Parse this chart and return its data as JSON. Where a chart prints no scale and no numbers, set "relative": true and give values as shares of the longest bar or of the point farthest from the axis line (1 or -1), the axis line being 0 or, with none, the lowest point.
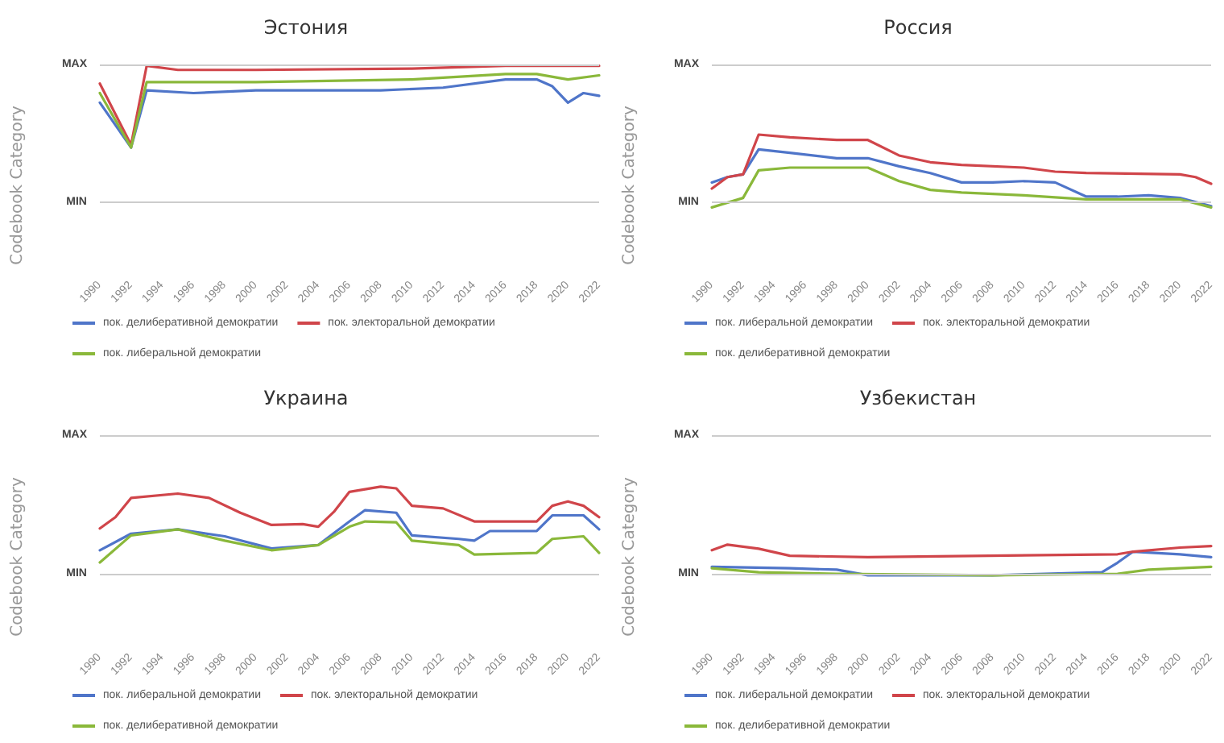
{
  "chart_data": [
    {
      "type": "line",
      "title": "Эстония",
      "ylabel": "Codebook Category",
      "relative": true,
      "xlim": [
        1990,
        2022
      ],
      "xticks": [
        1990,
        1992,
        1994,
        1996,
        1998,
        2000,
        2002,
        2004,
        2006,
        2008,
        2010,
        2012,
        2014,
        2016,
        2018,
        2020,
        2022
      ],
      "ref_lines": [
        {
          "axis": "y",
          "value": 1.01,
          "label": "MAX"
        },
        {
          "axis": "y",
          "value": 0,
          "label": "MIN"
        }
      ],
      "legend": "bottom",
      "marker": "none",
      "series": [
        {
          "name": "пок. делиберативной демократии",
          "color": "#4f75c9",
          "x": [
            1990,
            1992,
            1993,
            1996,
            2000,
            2008,
            2012,
            2016,
            2018,
            2019,
            2020,
            2021,
            2022
          ],
          "values": [
            0.73,
            0.4,
            0.82,
            0.8,
            0.82,
            0.82,
            0.84,
            0.9,
            0.9,
            0.85,
            0.73,
            0.8,
            0.78
          ]
        },
        {
          "name": "пок. электоральной демократии",
          "color": "#d0454a",
          "x": [
            1990,
            1992,
            1993,
            1995,
            2000,
            2010,
            2016,
            2022
          ],
          "values": [
            0.87,
            0.42,
            1,
            0.97,
            0.97,
            0.98,
            1,
            1
          ]
        },
        {
          "name": "пок. либеральной демократии",
          "color": "#8ab83a",
          "x": [
            1990,
            1992,
            1993,
            2000,
            2010,
            2016,
            2018,
            2020,
            2022
          ],
          "values": [
            0.8,
            0.4,
            0.88,
            0.88,
            0.9,
            0.94,
            0.94,
            0.9,
            0.93
          ]
        }
      ]
    },
    {
      "type": "line",
      "title": "Россия",
      "ylabel": "Codebook Category",
      "relative": true,
      "xlim": [
        1990,
        2022
      ],
      "xticks": [
        1990,
        1992,
        1994,
        1996,
        1998,
        2000,
        2002,
        2004,
        2006,
        2008,
        2010,
        2012,
        2014,
        2016,
        2018,
        2020,
        2022
      ],
      "ref_lines": [
        {
          "axis": "y",
          "value": 2.04,
          "label": "MAX"
        },
        {
          "axis": "y",
          "value": 0,
          "label": "MIN"
        }
      ],
      "legend": "bottom",
      "marker": "none",
      "series": [
        {
          "name": "пок. либеральной демократии",
          "color": "#4f75c9",
          "x": [
            1990,
            1991,
            1992,
            1993,
            1995,
            1998,
            2000,
            2002,
            2004,
            2006,
            2008,
            2010,
            2012,
            2014,
            2016,
            2018,
            2020,
            2022
          ],
          "values": [
            0.29,
            0.37,
            0.41,
            0.78,
            0.73,
            0.65,
            0.65,
            0.53,
            0.43,
            0.29,
            0.29,
            0.31,
            0.29,
            0.08,
            0.08,
            0.1,
            0.06,
            -0.06
          ]
        },
        {
          "name": "пок. электоральной демократии",
          "color": "#d0454a",
          "x": [
            1990,
            1991,
            1992,
            1993,
            1995,
            1998,
            2000,
            2002,
            2004,
            2006,
            2010,
            2012,
            2014,
            2020,
            2021,
            2022
          ],
          "values": [
            0.2,
            0.37,
            0.41,
            1,
            0.96,
            0.92,
            0.92,
            0.69,
            0.59,
            0.55,
            0.51,
            0.45,
            0.43,
            0.41,
            0.37,
            0.27
          ]
        },
        {
          "name": "пок. делиберативной демократии",
          "color": "#8ab83a",
          "x": [
            1990,
            1992,
            1993,
            1995,
            2000,
            2002,
            2004,
            2006,
            2010,
            2014,
            2020,
            2022
          ],
          "values": [
            -0.08,
            0.06,
            0.47,
            0.51,
            0.51,
            0.31,
            0.18,
            0.14,
            0.1,
            0.04,
            0.04,
            -0.08
          ]
        }
      ]
    },
    {
      "type": "line",
      "title": "Украина",
      "ylabel": "Codebook Category",
      "relative": true,
      "xlim": [
        1990,
        2022
      ],
      "xticks": [
        1990,
        1992,
        1994,
        1996,
        1998,
        2000,
        2002,
        2004,
        2006,
        2008,
        2010,
        2012,
        2014,
        2016,
        2018,
        2020,
        2022
      ],
      "ref_lines": [
        {
          "axis": "y",
          "value": 1.59,
          "label": "MAX"
        },
        {
          "axis": "y",
          "value": 0,
          "label": "MIN"
        }
      ],
      "legend": "bottom",
      "marker": "none",
      "series": [
        {
          "name": "пок. либеральной демократии",
          "color": "#4f75c9",
          "x": [
            1990,
            1992,
            1995,
            1998,
            2001,
            2004,
            2006,
            2007,
            2009,
            2010,
            2013,
            2014,
            2015,
            2018,
            2019,
            2021,
            2022
          ],
          "values": [
            0.27,
            0.46,
            0.51,
            0.43,
            0.29,
            0.33,
            0.6,
            0.73,
            0.7,
            0.44,
            0.4,
            0.38,
            0.49,
            0.49,
            0.67,
            0.67,
            0.51
          ]
        },
        {
          "name": "пок. электоральной демократии",
          "color": "#d0454a",
          "x": [
            1990,
            1991,
            1992,
            1995,
            1997,
            1999,
            2001,
            2003,
            2004,
            2005,
            2006,
            2008,
            2009,
            2010,
            2012,
            2014,
            2018,
            2019,
            2020,
            2021,
            2022
          ],
          "values": [
            0.52,
            0.65,
            0.87,
            0.92,
            0.87,
            0.7,
            0.56,
            0.57,
            0.54,
            0.71,
            0.94,
            1,
            0.98,
            0.78,
            0.75,
            0.6,
            0.6,
            0.78,
            0.83,
            0.78,
            0.65
          ]
        },
        {
          "name": "пок. делиберативной демократии",
          "color": "#8ab83a",
          "x": [
            1990,
            1992,
            1995,
            1998,
            2001,
            2004,
            2006,
            2007,
            2009,
            2010,
            2013,
            2014,
            2018,
            2019,
            2021,
            2022
          ],
          "values": [
            0.13,
            0.44,
            0.51,
            0.38,
            0.27,
            0.33,
            0.54,
            0.6,
            0.59,
            0.38,
            0.33,
            0.22,
            0.24,
            0.4,
            0.43,
            0.24
          ]
        }
      ]
    },
    {
      "type": "line",
      "title": "Узбекистан",
      "ylabel": "Codebook Category",
      "relative": true,
      "xlim": [
        1990,
        2022
      ],
      "xticks": [
        1990,
        1992,
        1994,
        1996,
        1998,
        2000,
        2002,
        2004,
        2006,
        2008,
        2010,
        2012,
        2014,
        2016,
        2018,
        2020,
        2022
      ],
      "ref_lines": [
        {
          "axis": "y",
          "value": 4.76,
          "label": "MAX"
        },
        {
          "axis": "y",
          "value": 0,
          "label": "MIN"
        }
      ],
      "legend": "bottom",
      "marker": "none",
      "series": [
        {
          "name": "пок. либеральной демократии",
          "color": "#4f75c9",
          "x": [
            1990,
            1995,
            1998,
            2000,
            2008,
            2015,
            2016,
            2017,
            2020,
            2022
          ],
          "values": [
            0.24,
            0.19,
            0.14,
            -0.05,
            -0.05,
            0.05,
            0.38,
            0.76,
            0.67,
            0.57
          ]
        },
        {
          "name": "пок. электоральной демократии",
          "color": "#d0454a",
          "x": [
            1990,
            1991,
            1993,
            1995,
            2000,
            2016,
            2017,
            2020,
            2022
          ],
          "values": [
            0.81,
            1,
            0.86,
            0.62,
            0.57,
            0.67,
            0.76,
            0.9,
            0.95
          ]
        },
        {
          "name": "пок. делиберативной демократии",
          "color": "#8ab83a",
          "x": [
            1990,
            1993,
            1998,
            2008,
            2016,
            2018,
            2022
          ],
          "values": [
            0.19,
            0.05,
            0,
            -0.05,
            0,
            0.14,
            0.24
          ]
        }
      ]
    }
  ]
}
